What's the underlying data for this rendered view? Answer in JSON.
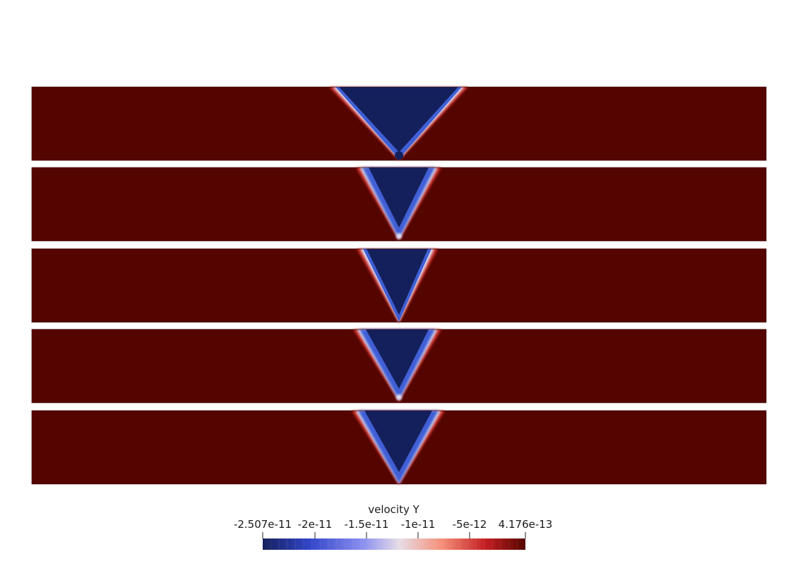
{
  "colorbar": {
    "title": "velocity Y",
    "min": -2.507e-11,
    "max": 4.176e-13,
    "colormap": [
      "#3b4cc0",
      "#dddddd",
      "#b40426"
    ],
    "low_color": "#14205c",
    "high_color": "#550500",
    "ticks": [
      {
        "value": -2.507e-11,
        "label": "-2.507e-11"
      },
      {
        "value": -2e-11,
        "label": "-2e-11"
      },
      {
        "value": -1.5e-11,
        "label": "-1.5e-11"
      },
      {
        "value": -1e-11,
        "label": "-1e-11"
      },
      {
        "value": -5e-12,
        "label": "-5e-12"
      },
      {
        "value": 4.176e-13,
        "label": "4.176e-13"
      }
    ]
  },
  "panels": [
    {
      "name": "panel-1",
      "tip_style": "blunt",
      "edge": "sharp"
    },
    {
      "name": "panel-2",
      "tip_style": "fuzzy",
      "edge": "soft"
    },
    {
      "name": "panel-3",
      "tip_style": "sharp",
      "edge": "sharp"
    },
    {
      "name": "panel-4",
      "tip_style": "fuzzy",
      "edge": "soft"
    },
    {
      "name": "panel-5",
      "tip_style": "sharp",
      "edge": "soft"
    }
  ]
}
